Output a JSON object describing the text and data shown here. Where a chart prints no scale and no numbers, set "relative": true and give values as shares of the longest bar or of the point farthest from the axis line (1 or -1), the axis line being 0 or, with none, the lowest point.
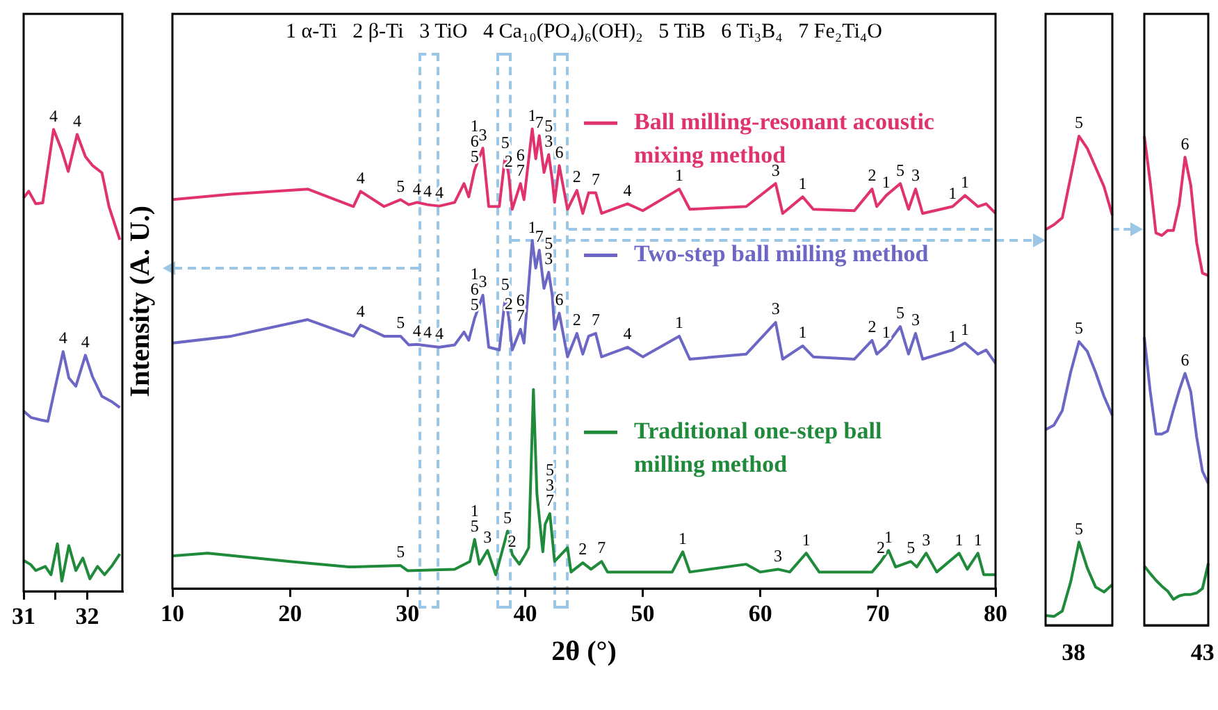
{
  "chart_data": [
    {
      "type": "line",
      "relative": true,
      "xlim": [
        31,
        32.55
      ],
      "xticks": [
        31,
        {
          "value": 31.5,
          "label": null
        },
        32
      ],
      "series": [
        {
          "color": "#e0336e",
          "x": [
            31.0,
            31.08,
            31.19,
            31.3,
            31.47,
            31.6,
            31.7,
            31.84,
            31.97,
            32.08,
            32.23,
            32.34,
            32.51
          ],
          "values": [
            0.852,
            0.866,
            0.839,
            0.841,
            1.0,
            0.954,
            0.909,
            0.989,
            0.941,
            0.922,
            0.906,
            0.833,
            0.761
          ]
        },
        {
          "color": "#6c66c4",
          "x": [
            31.0,
            31.12,
            31.27,
            31.38,
            31.49,
            31.62,
            31.71,
            31.82,
            31.97,
            32.08,
            32.23,
            32.38,
            32.51
          ],
          "values": [
            0.39,
            0.376,
            0.371,
            0.368,
            0.438,
            0.519,
            0.462,
            0.444,
            0.511,
            0.465,
            0.422,
            0.411,
            0.398
          ]
        },
        {
          "color": "#1f8a3a",
          "x": [
            31.0,
            31.11,
            31.19,
            31.34,
            31.43,
            31.53,
            31.6,
            31.71,
            31.82,
            31.93,
            32.04,
            32.16,
            32.27,
            32.38,
            32.51
          ],
          "values": [
            0.067,
            0.058,
            0.045,
            0.054,
            0.036,
            0.103,
            0.022,
            0.099,
            0.045,
            0.072,
            0.027,
            0.054,
            0.036,
            0.054,
            0.081
          ]
        }
      ],
      "annotations": [
        {
          "text": "4",
          "x": 31.47,
          "y": 1.0
        },
        {
          "text": "4",
          "x": 31.84,
          "y": 0.989
        },
        {
          "text": "4",
          "x": 31.62,
          "y": 0.519
        },
        {
          "text": "4",
          "x": 31.97,
          "y": 0.511
        }
      ]
    },
    {
      "type": "line",
      "relative": true,
      "legend": "right",
      "xlabel": "2θ (°)",
      "ylabel": "Intensity (A. U.)",
      "xlim": [
        10,
        80
      ],
      "xticks": [
        10,
        20,
        30,
        40,
        50,
        60,
        70,
        80
      ],
      "series": [
        {
          "name": "Ball milling-resonant acoustic mixing method",
          "color": "#e0336e",
          "x": [
            10,
            15,
            21.5,
            25.4,
            26.0,
            28,
            29.4,
            30.1,
            30.8,
            31.7,
            32.7,
            34.0,
            34.8,
            35.2,
            35.7,
            36.4,
            36.9,
            37.8,
            38.3,
            38.6,
            38.9,
            39.6,
            39.9,
            40.6,
            40.9,
            41.2,
            41.6,
            42.0,
            42.3,
            42.5,
            42.9,
            43.6,
            44.4,
            44.9,
            45.4,
            46.0,
            46.5,
            48.7,
            50,
            53.1,
            54,
            58.8,
            61.3,
            61.9,
            63.6,
            64.5,
            68,
            69.5,
            69.9,
            70.7,
            71.9,
            72.6,
            73.2,
            73.8,
            76.35,
            77.4,
            78.5,
            79.2,
            80
          ],
          "values": [
            0.846,
            0.858,
            0.869,
            0.831,
            0.864,
            0.831,
            0.846,
            0.835,
            0.84,
            0.835,
            0.832,
            0.84,
            0.881,
            0.852,
            0.911,
            0.958,
            0.831,
            0.831,
            0.941,
            0.9,
            0.825,
            0.881,
            0.846,
            1.0,
            0.935,
            0.985,
            0.905,
            0.944,
            0.89,
            0.84,
            0.92,
            0.825,
            0.866,
            0.816,
            0.861,
            0.861,
            0.816,
            0.837,
            0.822,
            0.869,
            0.825,
            0.831,
            0.881,
            0.816,
            0.852,
            0.825,
            0.822,
            0.869,
            0.831,
            0.855,
            0.881,
            0.825,
            0.869,
            0.816,
            0.831,
            0.855,
            0.831,
            0.837,
            0.816
          ]
        },
        {
          "name": "Two-step ball milling method",
          "color": "#6c66c4",
          "x": [
            10,
            15,
            21.5,
            25.4,
            26.0,
            28,
            29.4,
            30.1,
            30.8,
            31.7,
            32.7,
            34.0,
            34.8,
            35.2,
            35.7,
            36.4,
            36.9,
            37.8,
            38.3,
            38.6,
            38.9,
            39.6,
            39.9,
            40.6,
            40.9,
            41.2,
            41.6,
            42.0,
            42.3,
            42.5,
            42.9,
            43.6,
            44.4,
            44.9,
            45.4,
            46.0,
            46.5,
            48.7,
            50,
            53.1,
            54,
            58.8,
            61.3,
            61.9,
            63.6,
            64.5,
            68,
            69.5,
            69.9,
            70.7,
            71.9,
            72.6,
            73.2,
            73.8,
            76.35,
            77.4,
            78.5,
            79.2,
            80
          ],
          "values": [
            0.534,
            0.549,
            0.585,
            0.549,
            0.573,
            0.549,
            0.549,
            0.53,
            0.531,
            0.528,
            0.525,
            0.53,
            0.558,
            0.54,
            0.588,
            0.638,
            0.525,
            0.519,
            0.632,
            0.59,
            0.519,
            0.564,
            0.534,
            0.757,
            0.697,
            0.736,
            0.653,
            0.688,
            0.638,
            0.564,
            0.599,
            0.504,
            0.555,
            0.51,
            0.549,
            0.555,
            0.504,
            0.525,
            0.504,
            0.549,
            0.499,
            0.51,
            0.579,
            0.499,
            0.528,
            0.504,
            0.499,
            0.54,
            0.51,
            0.528,
            0.57,
            0.51,
            0.555,
            0.499,
            0.519,
            0.534,
            0.51,
            0.519,
            0.49
          ]
        },
        {
          "name": "Traditional one-step ball milling method",
          "color": "#1f8a3a",
          "x": [
            10,
            13,
            20,
            25,
            29.4,
            30,
            34,
            35.3,
            35.7,
            36.1,
            36.8,
            37.5,
            38.5,
            38.9,
            39.5,
            40.0,
            40.3,
            40.7,
            41.0,
            41.5,
            41.7,
            42.1,
            42.5,
            43.6,
            43.9,
            44.9,
            45.6,
            46.5,
            47,
            52.5,
            53.4,
            54,
            58.8,
            60,
            61.5,
            62.5,
            63.9,
            65,
            69.5,
            70.25,
            70.9,
            71.5,
            72.8,
            73.3,
            74.1,
            75,
            76.9,
            77.6,
            78.5,
            79,
            80
          ],
          "values": [
            0.071,
            0.077,
            0.059,
            0.047,
            0.05,
            0.039,
            0.042,
            0.059,
            0.107,
            0.053,
            0.083,
            0.03,
            0.125,
            0.074,
            0.053,
            0.074,
            0.089,
            0.433,
            0.205,
            0.08,
            0.14,
            0.163,
            0.059,
            0.089,
            0.036,
            0.056,
            0.042,
            0.059,
            0.036,
            0.036,
            0.08,
            0.036,
            0.053,
            0.036,
            0.042,
            0.036,
            0.077,
            0.036,
            0.036,
            0.059,
            0.083,
            0.047,
            0.059,
            0.047,
            0.077,
            0.036,
            0.077,
            0.042,
            0.077,
            0.03,
            0.03
          ]
        }
      ],
      "annotations": [
        "1 α-Ti   2 β-Ti   3 TiO   4 Ca₁₀(PO₄)₆(OH)₂   5 TiB   6 Ti₃B₄   7 Fe₂Ti₄O",
        {
          "text": "4",
          "x": 26.0,
          "y": 0.864
        },
        {
          "text": "5",
          "x": 29.4,
          "y": 0.846
        },
        {
          "text": "4",
          "x": 30.8,
          "y": 0.84
        },
        {
          "text": "4",
          "x": 31.7,
          "y": 0.835
        },
        {
          "text": "4",
          "x": 32.7,
          "y": 0.832
        },
        {
          "text": "5",
          "x": 35.7,
          "y": 0.911
        },
        {
          "text": "6",
          "x": 35.7,
          "y": 0.911
        },
        {
          "text": "1",
          "x": 35.7,
          "y": 0.911
        },
        {
          "text": "3",
          "x": 36.4,
          "y": 0.958
        },
        {
          "text": "5",
          "x": 38.3,
          "y": 0.941
        },
        {
          "text": "2",
          "x": 38.6,
          "y": 0.9
        },
        {
          "text": "7",
          "x": 39.6,
          "y": 0.881
        },
        {
          "text": "6",
          "x": 39.6,
          "y": 0.881
        },
        {
          "text": "1",
          "x": 40.6,
          "y": 1.0
        },
        {
          "text": "7",
          "x": 41.2,
          "y": 0.985
        },
        {
          "text": "3",
          "x": 42.0,
          "y": 0.944
        },
        {
          "text": "5",
          "x": 42.0,
          "y": 0.944
        },
        {
          "text": "6",
          "x": 42.9,
          "y": 0.92
        },
        {
          "text": "2",
          "x": 44.4,
          "y": 0.866
        },
        {
          "text": "7",
          "x": 46.0,
          "y": 0.861
        },
        {
          "text": "4",
          "x": 48.7,
          "y": 0.837
        },
        {
          "text": "1",
          "x": 53.1,
          "y": 0.869
        },
        {
          "text": "3",
          "x": 61.3,
          "y": 0.881
        },
        {
          "text": "1",
          "x": 63.6,
          "y": 0.852
        },
        {
          "text": "2",
          "x": 69.5,
          "y": 0.869
        },
        {
          "text": "1",
          "x": 70.7,
          "y": 0.855
        },
        {
          "text": "5",
          "x": 71.9,
          "y": 0.881
        },
        {
          "text": "3",
          "x": 73.2,
          "y": 0.869
        },
        {
          "text": "1",
          "x": 76.35,
          "y": 0.831
        },
        {
          "text": "1",
          "x": 77.4,
          "y": 0.855
        },
        {
          "text": "4",
          "x": 26.0,
          "y": 0.573
        },
        {
          "text": "5",
          "x": 29.4,
          "y": 0.549
        },
        {
          "text": "4",
          "x": 30.8,
          "y": 0.531
        },
        {
          "text": "4",
          "x": 31.7,
          "y": 0.528
        },
        {
          "text": "4",
          "x": 32.7,
          "y": 0.525
        },
        {
          "text": "5",
          "x": 35.7,
          "y": 0.588
        },
        {
          "text": "6",
          "x": 35.7,
          "y": 0.588
        },
        {
          "text": "1",
          "x": 35.7,
          "y": 0.588
        },
        {
          "text": "3",
          "x": 36.4,
          "y": 0.638
        },
        {
          "text": "5",
          "x": 38.3,
          "y": 0.632
        },
        {
          "text": "2",
          "x": 38.6,
          "y": 0.59
        },
        {
          "text": "7",
          "x": 39.6,
          "y": 0.564
        },
        {
          "text": "6",
          "x": 39.6,
          "y": 0.564
        },
        {
          "text": "1",
          "x": 40.6,
          "y": 0.757
        },
        {
          "text": "7",
          "x": 41.2,
          "y": 0.736
        },
        {
          "text": "3",
          "x": 42.0,
          "y": 0.688
        },
        {
          "text": "5",
          "x": 42.0,
          "y": 0.688
        },
        {
          "text": "6",
          "x": 42.9,
          "y": 0.599
        },
        {
          "text": "2",
          "x": 44.4,
          "y": 0.555
        },
        {
          "text": "7",
          "x": 46.0,
          "y": 0.555
        },
        {
          "text": "4",
          "x": 48.7,
          "y": 0.525
        },
        {
          "text": "1",
          "x": 53.1,
          "y": 0.549
        },
        {
          "text": "3",
          "x": 61.3,
          "y": 0.579
        },
        {
          "text": "1",
          "x": 63.6,
          "y": 0.528
        },
        {
          "text": "2",
          "x": 69.5,
          "y": 0.54
        },
        {
          "text": "1",
          "x": 70.7,
          "y": 0.528
        },
        {
          "text": "5",
          "x": 71.9,
          "y": 0.57
        },
        {
          "text": "3",
          "x": 73.2,
          "y": 0.555
        },
        {
          "text": "1",
          "x": 76.35,
          "y": 0.519
        },
        {
          "text": "1",
          "x": 77.4,
          "y": 0.534
        },
        {
          "text": "5",
          "x": 29.4,
          "y": 0.05
        },
        {
          "text": "5",
          "x": 35.7,
          "y": 0.107
        },
        {
          "text": "1",
          "x": 35.7,
          "y": 0.107
        },
        {
          "text": "3",
          "x": 36.8,
          "y": 0.083
        },
        {
          "text": "5",
          "x": 38.5,
          "y": 0.125
        },
        {
          "text": "2",
          "x": 38.9,
          "y": 0.074
        },
        {
          "text": "7",
          "x": 42.1,
          "y": 0.163
        },
        {
          "text": "3",
          "x": 42.1,
          "y": 0.163
        },
        {
          "text": "5",
          "x": 42.1,
          "y": 0.163
        },
        {
          "text": "2",
          "x": 44.9,
          "y": 0.056
        },
        {
          "text": "7",
          "x": 46.5,
          "y": 0.059
        },
        {
          "text": "1",
          "x": 53.4,
          "y": 0.08
        },
        {
          "text": "3",
          "x": 61.5,
          "y": 0.042
        },
        {
          "text": "1",
          "x": 63.9,
          "y": 0.077
        },
        {
          "text": "2",
          "x": 70.25,
          "y": 0.059
        },
        {
          "text": "1",
          "x": 70.9,
          "y": 0.083
        },
        {
          "text": "5",
          "x": 72.8,
          "y": 0.059
        },
        {
          "text": "3",
          "x": 74.1,
          "y": 0.077
        },
        {
          "text": "1",
          "x": 76.9,
          "y": 0.077
        },
        {
          "text": "1",
          "x": 78.5,
          "y": 0.077
        }
      ]
    },
    {
      "type": "line",
      "relative": true,
      "categories": [
        null,
        null,
        null,
        null,
        null,
        null,
        null,
        null,
        null
      ],
      "series": [
        {
          "color": "#e0336e",
          "values": [
            0.809,
            0.819,
            0.833,
            0.916,
            1.0,
            0.975,
            0.936,
            0.897,
            0.838
          ]
        },
        {
          "color": "#6c66c4",
          "values": [
            0.4,
            0.409,
            0.439,
            0.517,
            0.58,
            0.56,
            0.517,
            0.468,
            0.429
          ]
        },
        {
          "color": "#1f8a3a",
          "values": [
            0.02,
            0.018,
            0.029,
            0.088,
            0.17,
            0.117,
            0.078,
            0.068,
            0.083
          ]
        }
      ],
      "annotations": [
        "38",
        {
          "text": "5",
          "y": 1.0
        },
        {
          "text": "5",
          "y": 0.58
        },
        {
          "text": "5",
          "y": 0.17
        }
      ]
    },
    {
      "type": "line",
      "relative": true,
      "categories": [
        null,
        null,
        null,
        null,
        null,
        null,
        null,
        null,
        null,
        null,
        null,
        null
      ],
      "series": [
        {
          "color": "#e0336e",
          "values": [
            1.0,
            0.908,
            0.802,
            0.797,
            0.807,
            0.807,
            0.86,
            0.957,
            0.899,
            0.783,
            0.72,
            0.715
          ]
        },
        {
          "color": "#6c66c4",
          "values": [
            0.589,
            0.48,
            0.391,
            0.391,
            0.397,
            0.44,
            0.48,
            0.515,
            0.477,
            0.385,
            0.315,
            0.29
          ]
        },
        {
          "color": "#1f8a3a",
          "values": [
            0.121,
            0.106,
            0.092,
            0.08,
            0.07,
            0.053,
            0.06,
            0.063,
            0.063,
            0.066,
            0.075,
            0.126
          ]
        }
      ],
      "annotations": [
        "43",
        {
          "text": "6",
          "y": 0.957
        },
        {
          "text": "6",
          "y": 0.515
        }
      ]
    }
  ]
}
